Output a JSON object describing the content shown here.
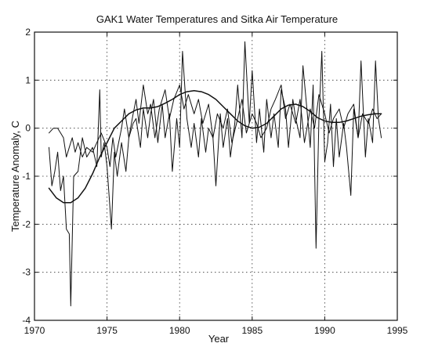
{
  "chart_data": {
    "type": "line",
    "title": "GAK1 Water Temperatures and Sitka Air Temperature",
    "xlabel": "Year",
    "ylabel": "Temperature Anomaly, C",
    "xlim": [
      1970,
      1995
    ],
    "ylim": [
      -4,
      2
    ],
    "xticks": [
      1970,
      1975,
      1980,
      1985,
      1990,
      1995
    ],
    "yticks": [
      -4,
      -3,
      -2,
      -1,
      0,
      1,
      2
    ],
    "grid": true,
    "series": [
      {
        "x": [
          1971.0,
          1971.5,
          1972.0,
          1972.5,
          1973.0,
          1973.5,
          1974.0,
          1974.5,
          1975.0,
          1975.5,
          1976.0,
          1976.5,
          1977.0,
          1977.5,
          1978.0,
          1978.5,
          1979.0,
          1979.5,
          1980.0,
          1980.5,
          1981.0,
          1981.5,
          1982.0,
          1982.5,
          1983.0,
          1983.5,
          1984.0,
          1984.5,
          1985.0,
          1985.5,
          1986.0,
          1986.5,
          1987.0,
          1987.5,
          1988.0,
          1988.5,
          1989.0,
          1989.5,
          1990.0,
          1990.5,
          1991.0,
          1991.5,
          1992.0,
          1992.5,
          1993.0,
          1993.5,
          1993.9
        ],
        "y": [
          -1.25,
          -1.45,
          -1.55,
          -1.55,
          -1.45,
          -1.25,
          -0.95,
          -0.6,
          -0.3,
          0.0,
          0.15,
          0.3,
          0.38,
          0.42,
          0.42,
          0.45,
          0.52,
          0.6,
          0.7,
          0.76,
          0.78,
          0.76,
          0.7,
          0.6,
          0.45,
          0.3,
          0.15,
          0.05,
          0.0,
          0.02,
          0.1,
          0.25,
          0.4,
          0.48,
          0.5,
          0.45,
          0.35,
          0.22,
          0.15,
          0.12,
          0.12,
          0.15,
          0.2,
          0.25,
          0.28,
          0.3,
          0.3
        ]
      },
      {
        "x": [
          1971.0,
          1971.2,
          1971.4,
          1971.6,
          1971.8,
          1972.0,
          1972.2,
          1972.4,
          1972.5,
          1972.7,
          1973.0,
          1973.3,
          1973.6,
          1974.0,
          1974.3,
          1974.5,
          1974.6,
          1974.8,
          1975.0,
          1975.3,
          1975.5,
          1975.7,
          1976.0,
          1976.3,
          1976.5,
          1976.8,
          1977.0,
          1977.3,
          1977.5,
          1977.8,
          1978.0,
          1978.2,
          1978.5,
          1978.8,
          1979.0,
          1979.3,
          1979.5,
          1979.8,
          1980.0,
          1980.2,
          1980.5,
          1980.8,
          1981.0,
          1981.3,
          1981.5,
          1981.8,
          1982.0,
          1982.3,
          1982.5,
          1982.8,
          1983.0,
          1983.3,
          1983.5,
          1983.8,
          1984.0,
          1984.3,
          1984.5,
          1984.8,
          1985.0,
          1985.3,
          1985.5,
          1985.8,
          1986.0,
          1986.3,
          1986.5,
          1986.8,
          1987.0,
          1987.3,
          1987.5,
          1987.8,
          1988.0,
          1988.3,
          1988.5,
          1988.8,
          1989.0,
          1989.2,
          1989.4,
          1989.6,
          1989.8,
          1990.0,
          1990.2,
          1990.4,
          1990.6,
          1990.8,
          1991.0,
          1991.3,
          1991.5,
          1991.8,
          1992.0,
          1992.3,
          1992.5,
          1992.8,
          1993.0,
          1993.3,
          1993.5,
          1993.7,
          1993.9
        ],
        "y": [
          -0.4,
          -1.2,
          -0.9,
          -0.5,
          -1.3,
          -1.0,
          -2.1,
          -2.2,
          -3.7,
          -1.0,
          -0.9,
          -0.2,
          -0.6,
          -0.4,
          -0.8,
          0.8,
          -0.6,
          -0.3,
          -0.8,
          -2.1,
          -0.5,
          -1.0,
          -0.3,
          -0.9,
          -0.2,
          0.1,
          0.2,
          -0.4,
          0.4,
          -0.2,
          0.3,
          0.6,
          -0.3,
          0.5,
          -0.2,
          0.3,
          -0.9,
          0.2,
          -0.4,
          1.6,
          0.2,
          -0.4,
          0.1,
          -0.6,
          0.2,
          -0.5,
          0.0,
          -0.2,
          -1.2,
          0.3,
          -0.4,
          0.2,
          -0.6,
          0.1,
          0.9,
          -0.2,
          1.8,
          0.1,
          1.2,
          -0.3,
          0.4,
          -0.5,
          0.6,
          -0.2,
          0.3,
          -0.4,
          0.8,
          0.4,
          -0.4,
          0.6,
          0.2,
          -0.2,
          1.3,
          0.3,
          -0.4,
          0.9,
          -2.5,
          0.2,
          1.6,
          -0.7,
          -0.3,
          0.5,
          -0.8,
          0.2,
          -0.6,
          0.1,
          -0.4,
          -1.4,
          0.4,
          -0.2,
          1.4,
          -0.6,
          0.2,
          -0.3,
          1.4,
          0.2,
          -0.2
        ]
      },
      {
        "x": [
          1971.0,
          1971.3,
          1971.6,
          1971.8,
          1972.0,
          1972.2,
          1972.4,
          1972.6,
          1972.8,
          1973.0,
          1973.3,
          1973.6,
          1974.0,
          1974.3,
          1974.6,
          1975.0,
          1975.2,
          1975.4,
          1975.6,
          1975.8,
          1976.0,
          1976.2,
          1976.5,
          1976.8,
          1977.0,
          1977.2,
          1977.5,
          1977.8,
          1978.0,
          1978.3,
          1978.6,
          1979.0,
          1979.3,
          1979.6,
          1980.0,
          1980.3,
          1980.6,
          1981.0,
          1981.3,
          1981.6,
          1982.0,
          1982.3,
          1982.6,
          1983.0,
          1983.3,
          1983.6,
          1984.0,
          1984.3,
          1984.6,
          1985.0,
          1985.3,
          1985.6,
          1986.0,
          1986.3,
          1986.6,
          1987.0,
          1987.3,
          1987.6,
          1988.0,
          1988.3,
          1988.6,
          1989.0,
          1989.3,
          1989.6,
          1990.0,
          1990.3,
          1990.6,
          1991.0,
          1991.3,
          1991.6,
          1992.0,
          1992.3,
          1992.6,
          1993.0,
          1993.3,
          1993.6,
          1993.9
        ],
        "y": [
          -0.1,
          0.0,
          0.0,
          -0.1,
          -0.2,
          -0.6,
          -0.4,
          -0.2,
          -0.5,
          -0.3,
          -0.6,
          -0.4,
          -0.5,
          -0.3,
          -0.1,
          -0.4,
          -0.8,
          -0.2,
          -0.6,
          -0.3,
          0.0,
          0.4,
          -0.2,
          0.3,
          0.6,
          0.1,
          0.9,
          0.3,
          0.5,
          -0.2,
          0.4,
          0.8,
          0.2,
          0.6,
          0.9,
          0.4,
          0.7,
          0.3,
          0.6,
          0.1,
          0.5,
          -0.2,
          0.3,
          0.0,
          0.4,
          -0.3,
          0.2,
          0.6,
          -0.1,
          0.3,
          0.1,
          -0.2,
          0.0,
          0.4,
          0.6,
          0.9,
          0.2,
          0.5,
          0.1,
          0.6,
          -0.3,
          0.4,
          0.0,
          0.7,
          0.3,
          -0.1,
          0.2,
          0.4,
          0.0,
          0.3,
          0.5,
          -0.2,
          0.3,
          0.1,
          0.4,
          0.2,
          0.3
        ]
      }
    ]
  }
}
